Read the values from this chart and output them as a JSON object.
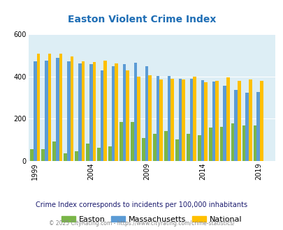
{
  "title": "Easton Violent Crime Index",
  "years_plot": [
    1999,
    2000,
    2001,
    2002,
    2003,
    2004,
    2005,
    2006,
    2007,
    2008,
    2009,
    2010,
    2011,
    2012,
    2013,
    2014,
    2015,
    2016,
    2017,
    2018,
    2019
  ],
  "easton_vals": [
    55,
    55,
    92,
    37,
    47,
    83,
    62,
    68,
    185,
    185,
    108,
    130,
    143,
    103,
    128,
    123,
    158,
    163,
    178,
    168,
    168
  ],
  "mass_vals": [
    473,
    477,
    488,
    473,
    463,
    458,
    430,
    450,
    458,
    465,
    450,
    403,
    403,
    390,
    391,
    383,
    378,
    358,
    338,
    323,
    328
  ],
  "nat_vals": [
    508,
    508,
    508,
    495,
    473,
    468,
    475,
    463,
    430,
    400,
    405,
    388,
    390,
    387,
    400,
    373,
    381,
    396,
    381,
    388,
    381
  ],
  "easton_color": "#7ab648",
  "mass_color": "#5b9bd5",
  "nat_color": "#ffc000",
  "bg_color": "#ddeef5",
  "title_color": "#1f6eb5",
  "subtitle": "Crime Index corresponds to incidents per 100,000 inhabitants",
  "footer": "© 2025 CityRating.com - https://www.cityrating.com/crime-statistics/",
  "ylim": [
    0,
    600
  ],
  "yticks": [
    0,
    200,
    400,
    600
  ],
  "xtick_years": [
    1999,
    2004,
    2009,
    2014,
    2019
  ],
  "bar_width": 0.3,
  "legend_labels": [
    "Easton",
    "Massachusetts",
    "National"
  ],
  "subtitle_color": "#1a1a6e",
  "footer_color": "#888888"
}
